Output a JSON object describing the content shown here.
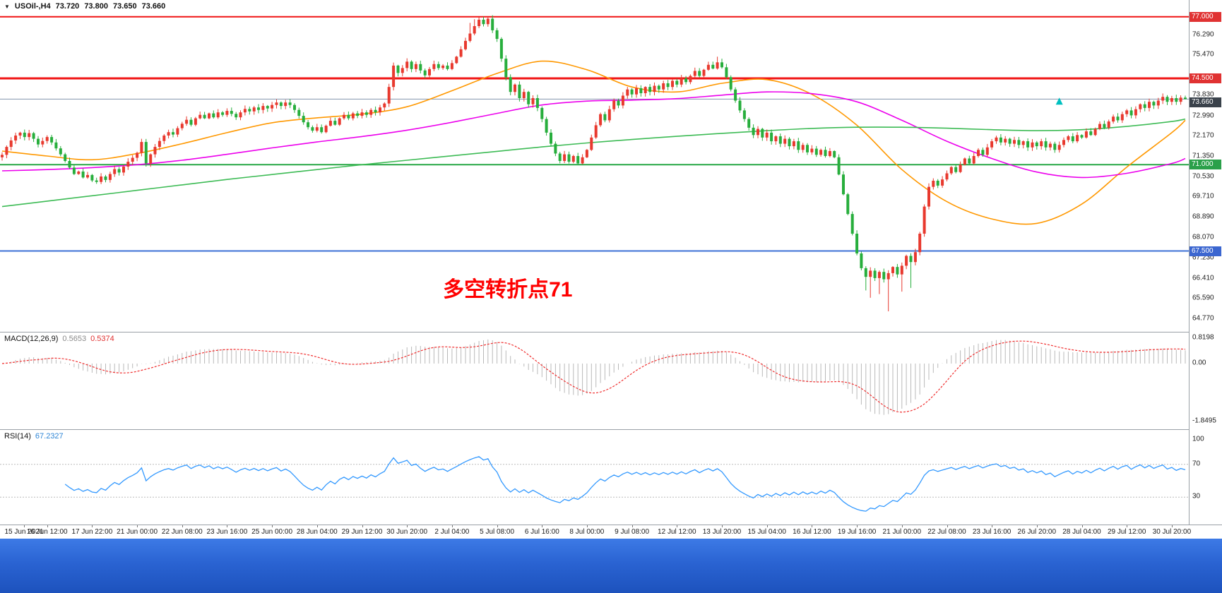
{
  "quote": {
    "symbol": "USOil-,H4",
    "open": "73.720",
    "high": "73.800",
    "low": "73.650",
    "close": "73.660"
  },
  "chart_data": [
    {
      "type": "candlestick",
      "title": "USOil-,H4",
      "up_color": "#e8392e",
      "down_color": "#27ae3c",
      "ylim": [
        64.45,
        77.45
      ],
      "x_labels": [
        "15 Jun 2021",
        "16 Jun 12:00",
        "17 Jun 22:00",
        "21 Jun 00:00",
        "22 Jun 08:00",
        "23 Jun 16:00",
        "25 Jun 00:00",
        "28 Jun 04:00",
        "29 Jun 12:00",
        "30 Jun 20:00",
        "2 Jul 04:00",
        "5 Jul 08:00",
        "6 Jul 16:00",
        "8 Jul 00:00",
        "9 Jul 08:00",
        "12 Jul 12:00",
        "13 Jul 20:00",
        "15 Jul 04:00",
        "16 Jul 12:00",
        "19 Jul 16:00",
        "21 Jul 00:00",
        "22 Jul 08:00",
        "23 Jul 16:00",
        "26 Jul 20:00",
        "28 Jul 04:00",
        "29 Jul 12:00",
        "30 Jul 20:00"
      ],
      "candles_per_label": 10,
      "first_open": 71.3,
      "closes": [
        71.4,
        71.72,
        71.98,
        72.18,
        72.3,
        72.12,
        72.28,
        72.05,
        71.82,
        71.96,
        72.12,
        71.9,
        71.66,
        71.42,
        71.15,
        70.88,
        70.62,
        70.72,
        70.48,
        70.58,
        70.36,
        70.3,
        70.52,
        70.38,
        70.62,
        70.82,
        70.68,
        70.92,
        71.12,
        71.28,
        71.48,
        71.92,
        71.05,
        71.42,
        71.72,
        71.96,
        72.18,
        72.32,
        72.22,
        72.48,
        72.66,
        72.82,
        72.62,
        72.88,
        73.02,
        72.88,
        73.08,
        72.92,
        73.12,
        73.02,
        73.18,
        73.06,
        72.92,
        73.12,
        73.26,
        73.16,
        73.32,
        73.22,
        73.38,
        73.28,
        73.42,
        73.52,
        73.38,
        73.52,
        73.42,
        73.22,
        72.98,
        72.72,
        72.52,
        72.38,
        72.52,
        72.32,
        72.58,
        72.78,
        72.62,
        72.88,
        73.02,
        72.88,
        73.08,
        72.98,
        73.12,
        73.02,
        73.22,
        73.12,
        73.32,
        73.48,
        74.15,
        75.02,
        74.72,
        74.92,
        75.18,
        74.88,
        75.08,
        74.82,
        74.62,
        74.88,
        75.08,
        74.92,
        75.02,
        74.88,
        75.12,
        75.38,
        75.68,
        76.02,
        76.32,
        76.62,
        76.88,
        76.7,
        76.92,
        76.45,
        76.1,
        75.3,
        74.55,
        73.95,
        74.25,
        73.7,
        73.95,
        73.45,
        73.7,
        73.3,
        72.85,
        72.3,
        71.85,
        71.45,
        71.15,
        71.42,
        71.12,
        71.35,
        71.05,
        71.3,
        71.6,
        72.1,
        72.6,
        73.05,
        72.8,
        73.25,
        73.6,
        73.4,
        73.8,
        74.05,
        73.85,
        74.1,
        73.9,
        74.15,
        73.95,
        74.2,
        74.05,
        74.3,
        74.15,
        74.4,
        74.25,
        74.5,
        74.35,
        74.6,
        74.8,
        74.6,
        74.85,
        75.05,
        74.9,
        75.15,
        74.95,
        74.55,
        74.05,
        73.6,
        73.2,
        72.85,
        72.5,
        72.2,
        72.45,
        72.1,
        72.3,
        71.95,
        72.15,
        71.85,
        72.05,
        71.75,
        71.95,
        71.6,
        71.8,
        71.5,
        71.65,
        71.4,
        71.6,
        71.35,
        71.55,
        71.3,
        70.6,
        69.8,
        69.0,
        68.2,
        67.4,
        66.8,
        66.45,
        66.7,
        66.4,
        66.65,
        66.35,
        66.6,
        66.85,
        66.55,
        66.9,
        67.3,
        67.05,
        67.45,
        68.2,
        69.3,
        70.1,
        70.35,
        70.15,
        70.4,
        70.65,
        70.9,
        70.7,
        71.0,
        71.25,
        71.05,
        71.35,
        71.6,
        71.4,
        71.7,
        71.95,
        72.1,
        71.9,
        72.05,
        71.85,
        72.0,
        71.8,
        71.95,
        71.7,
        71.9,
        71.75,
        71.95,
        71.7,
        71.85,
        71.6,
        71.8,
        72.0,
        72.15,
        71.95,
        72.2,
        72.1,
        72.35,
        72.2,
        72.45,
        72.65,
        72.5,
        72.75,
        72.95,
        72.8,
        73.05,
        73.2,
        73.0,
        73.25,
        73.45,
        73.3,
        73.55,
        73.4,
        73.6,
        73.75,
        73.55,
        73.7,
        73.55,
        73.72,
        73.66
      ],
      "wick_overrides": [
        {
          "i": 104,
          "h": 76.75
        },
        {
          "i": 105,
          "h": 76.9
        },
        {
          "i": 106,
          "h": 76.98
        },
        {
          "i": 107,
          "h": 77.0
        },
        {
          "i": 108,
          "h": 77.0
        },
        {
          "i": 159,
          "h": 75.38
        },
        {
          "i": 160,
          "h": 75.3
        },
        {
          "i": 32,
          "l": 70.92
        },
        {
          "i": 192,
          "l": 65.9
        },
        {
          "i": 193,
          "l": 65.6
        },
        {
          "i": 195,
          "l": 65.75
        },
        {
          "i": 197,
          "l": 65.05
        },
        {
          "i": 200,
          "l": 65.85
        },
        {
          "i": 202,
          "l": 66.0
        },
        {
          "i": 263,
          "h": 73.8,
          "l": 73.65
        }
      ],
      "y_ticks": [
        "76.290",
        "75.470",
        "73.830",
        "72.990",
        "72.170",
        "71.350",
        "70.530",
        "69.710",
        "68.890",
        "68.070",
        "67.230",
        "66.410",
        "65.590",
        "64.770"
      ],
      "horizontal_lines": [
        {
          "price": 77.0,
          "label": "77.000",
          "color": "#f01414",
          "width": 2,
          "badge_color": "#e03232"
        },
        {
          "price": 74.5,
          "label": "74.500",
          "color": "#f01414",
          "width": 3,
          "badge_color": "#e03232"
        },
        {
          "price": 71.0,
          "label": "71.000",
          "color": "#28a745",
          "width": 2,
          "badge_color": "#2ba04a"
        },
        {
          "price": 67.5,
          "label": "67.500",
          "color": "#3b6fd6",
          "width": 2,
          "badge_color": "#3b66d0"
        }
      ],
      "current_price": {
        "value": 73.66,
        "label": "73.660",
        "line_color": "#8296ad",
        "badge_color": "#3a424b"
      },
      "annotation": {
        "text": "多空转折点71",
        "color": "#ff0000",
        "candle_index": 98,
        "price_baseline": 65.65,
        "font_size": 30
      },
      "marker": {
        "shape": "up-arrow",
        "color": "#00c0c0",
        "candle_index": 235,
        "price": 73.55
      },
      "ma_candle_index": [
        0,
        10,
        20,
        30,
        40,
        50,
        60,
        70,
        80,
        90,
        100,
        110,
        120,
        130,
        140,
        150,
        160,
        170,
        180,
        190,
        200,
        210,
        220,
        230,
        240,
        250,
        260,
        263
      ],
      "moving_averages": [
        {
          "name": "fast-orange",
          "color": "#ff9800",
          "values": [
            71.55,
            71.35,
            71.2,
            71.45,
            71.85,
            72.3,
            72.7,
            72.9,
            73.05,
            73.35,
            74.0,
            74.7,
            75.2,
            74.85,
            74.15,
            73.95,
            74.3,
            74.45,
            73.85,
            72.6,
            70.8,
            69.5,
            68.8,
            68.62,
            69.4,
            70.9,
            72.3,
            72.8
          ]
        },
        {
          "name": "mid-magenta",
          "color": "#ec00ec",
          "values": [
            70.75,
            70.8,
            70.88,
            71.0,
            71.18,
            71.42,
            71.68,
            71.92,
            72.14,
            72.4,
            72.72,
            73.08,
            73.42,
            73.58,
            73.62,
            73.68,
            73.82,
            73.95,
            73.88,
            73.55,
            72.8,
            71.95,
            71.25,
            70.7,
            70.48,
            70.65,
            71.05,
            71.25
          ]
        },
        {
          "name": "slow-green",
          "color": "#3dbb55",
          "values": [
            69.3,
            69.52,
            69.74,
            69.96,
            70.18,
            70.4,
            70.6,
            70.8,
            71.0,
            71.18,
            71.36,
            71.54,
            71.72,
            71.88,
            72.02,
            72.15,
            72.27,
            72.38,
            72.47,
            72.52,
            72.52,
            72.48,
            72.42,
            72.38,
            72.42,
            72.55,
            72.75,
            72.85
          ]
        }
      ]
    },
    {
      "type": "bar",
      "name": "MACD",
      "label": "MACD(12,26,9)",
      "main_value": "0.5653",
      "signal_value": "0.5374",
      "params": {
        "fast": 12,
        "slow": 26,
        "signal": 9
      },
      "ylim": [
        -1.8495,
        0.8198
      ],
      "y_ticks": [
        "0.8198",
        "0.00",
        "-1.8495"
      ],
      "histogram_color": "#b9b9b9",
      "signal_color": "#f03030"
    },
    {
      "type": "line",
      "name": "RSI",
      "label": "RSI(14)",
      "value_text": "67.2327",
      "period": 14,
      "levels": [
        70,
        30
      ],
      "ylim": [
        0,
        100
      ],
      "y_ticks": [
        "100",
        "70",
        "30"
      ],
      "line_color": "#3399ff",
      "level_color": "#bcbcbc"
    }
  ]
}
